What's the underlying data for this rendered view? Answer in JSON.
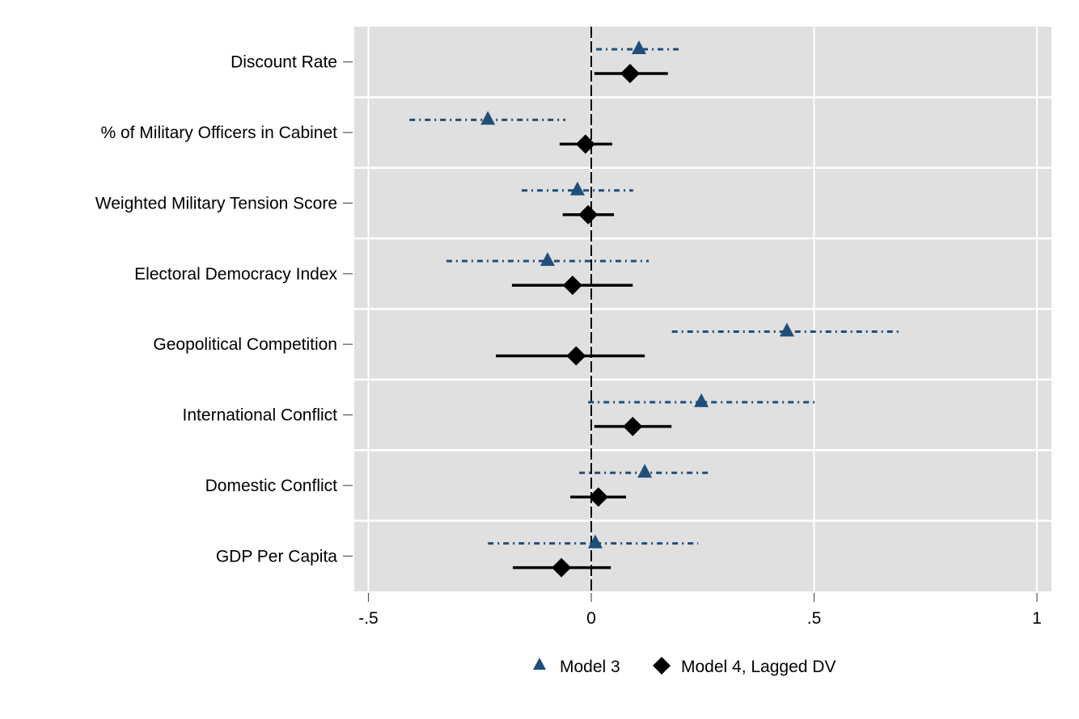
{
  "chart_data": {
    "type": "scatter",
    "subtype": "coefficient-plot",
    "title": "",
    "xlabel": "",
    "ylabel": "",
    "xlim": [
      -0.53,
      1.03
    ],
    "xticks": [
      -0.5,
      0,
      0.5,
      1
    ],
    "xtick_labels": [
      "-.5",
      "0",
      ".5",
      "1"
    ],
    "reference_line": 0,
    "grid": true,
    "legend_position": "bottom",
    "categories": [
      "Discount Rate",
      "% of Military Officers in Cabinet",
      "Weighted Military Tension Score",
      "Electoral Democracy Index",
      "Geopolitical Competition",
      "International Conflict",
      "Domestic Conflict",
      "GDP Per Capita"
    ],
    "series": [
      {
        "name": "Model 3",
        "marker": "triangle",
        "color": "#1f4e79",
        "line_style": "dash-dot",
        "estimates": [
          0.107,
          -0.232,
          -0.031,
          -0.098,
          0.439,
          0.247,
          0.12,
          0.009
        ],
        "ci_low": [
          0.011,
          -0.408,
          -0.156,
          -0.325,
          0.181,
          -0.007,
          -0.027,
          -0.232
        ],
        "ci_high": [
          0.201,
          -0.058,
          0.094,
          0.129,
          0.693,
          0.501,
          0.269,
          0.24
        ]
      },
      {
        "name": "Model 4, Lagged DV",
        "marker": "diamond",
        "color": "#000000",
        "line_style": "solid",
        "estimates": [
          0.087,
          -0.013,
          -0.007,
          -0.042,
          -0.034,
          0.093,
          0.016,
          -0.067
        ],
        "ci_low": [
          0.007,
          -0.071,
          -0.064,
          -0.178,
          -0.214,
          0.007,
          -0.047,
          -0.176
        ],
        "ci_high": [
          0.172,
          0.047,
          0.051,
          0.093,
          0.12,
          0.18,
          0.078,
          0.044
        ]
      }
    ]
  },
  "colors": {
    "plot_background": "#e0e0e0",
    "grid": "#ffffff",
    "model3": "#1f4e79",
    "model4": "#000000"
  }
}
